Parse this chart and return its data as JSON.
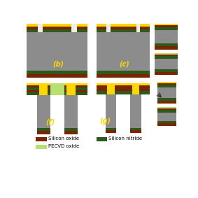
{
  "colors": {
    "silicon": "#8C8C8C",
    "silicon_oxide": "#7B2400",
    "silicon_nitride": "#2D5A1B",
    "yellow": "#FFD700",
    "pecvd_oxide": "#B8E070",
    "white": "#F0EDE8",
    "background": "#FFFFFF"
  },
  "labels": {
    "b": "(b)",
    "c": "(c)",
    "f": "(f)",
    "g": "(g)"
  }
}
